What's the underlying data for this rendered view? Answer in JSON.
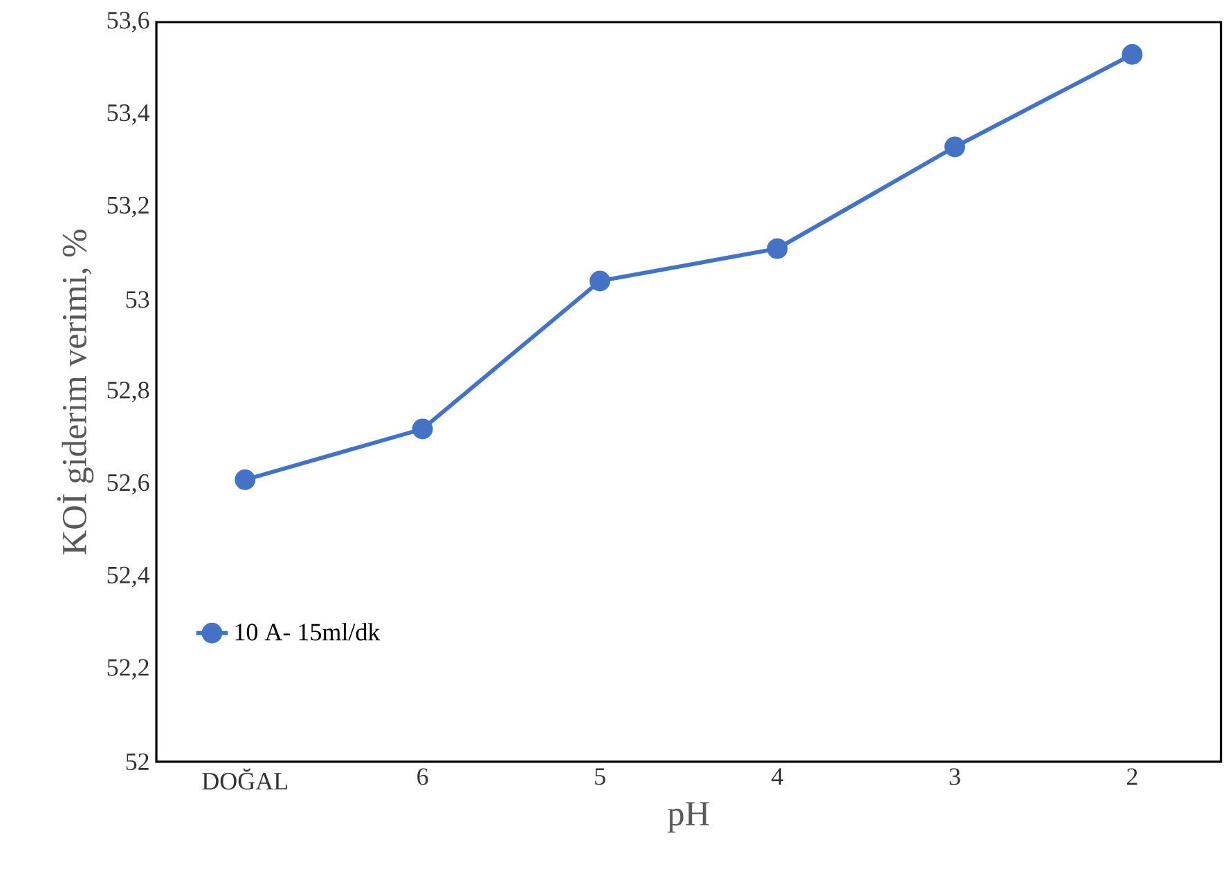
{
  "chart_data": {
    "type": "line",
    "xlabel": "pH",
    "ylabel": "KOİ giderim verimi, %",
    "categories": [
      "DOĞAL",
      "6",
      "5",
      "4",
      "3",
      "2"
    ],
    "series": [
      {
        "name": "10 A- 15ml/dk",
        "color": "#4472c4",
        "values": [
          52.61,
          52.72,
          53.04,
          53.11,
          53.33,
          53.53
        ]
      }
    ],
    "ylim": [
      52,
      53.6
    ],
    "yticks": [
      52,
      {
        "value": 52.2,
        "label": "52,2"
      },
      {
        "value": 52.4,
        "label": "52,4"
      },
      {
        "value": 52.6,
        "label": "52,6"
      },
      {
        "value": 52.8,
        "label": "52,8"
      },
      53,
      {
        "value": 53.2,
        "label": "53,2"
      },
      {
        "value": 53.4,
        "label": "53,4"
      },
      {
        "value": 53.6,
        "label": "53,6"
      }
    ],
    "grid": false,
    "legend": "bottom left",
    "marker": "circle",
    "line_style": "solid"
  }
}
